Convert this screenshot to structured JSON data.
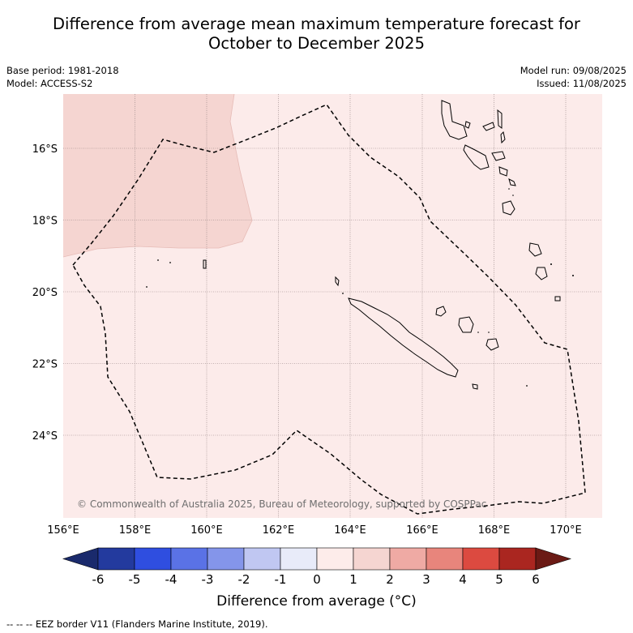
{
  "title_line1": "Difference from average mean maximum temperature forecast for",
  "title_line2": "October to December 2025",
  "base_period": "Base period: 1981-2018",
  "model": "Model: ACCESS-S2",
  "model_run": "Model run: 09/08/2025",
  "issued": "Issued: 11/08/2025",
  "copyright": "© Commonwealth of Australia 2025, Bureau of Meteorology, supported by COSPPac",
  "footer": "-- -- -- EEZ border V11 (Flanders Marine Institute, 2019).",
  "colorbar_title": "Difference from average (°C)",
  "lon_labels": [
    "156°E",
    "158°E",
    "160°E",
    "162°E",
    "164°E",
    "166°E",
    "168°E",
    "170°E"
  ],
  "lat_labels": [
    "16°S",
    "18°S",
    "20°S",
    "22°S",
    "24°S"
  ],
  "colorbar": {
    "ticks": [
      "-6",
      "-5",
      "-4",
      "-3",
      "-2",
      "-1",
      "0",
      "1",
      "2",
      "3",
      "4",
      "5",
      "6"
    ],
    "low_extension_color": "#1a2a6c",
    "colors": [
      "#233a9e",
      "#2f4ee0",
      "#5a72e6",
      "#8495ea",
      "#c0c7f2",
      "#e8ebf9",
      "#fdecea",
      "#f5d5d1",
      "#efaaa4",
      "#e8857c",
      "#dc4a40",
      "#aa2620"
    ],
    "high_extension_color": "#6b1a15"
  },
  "map": {
    "background_color": "#fcebea",
    "warm_region_color": "#f5d5d1"
  }
}
